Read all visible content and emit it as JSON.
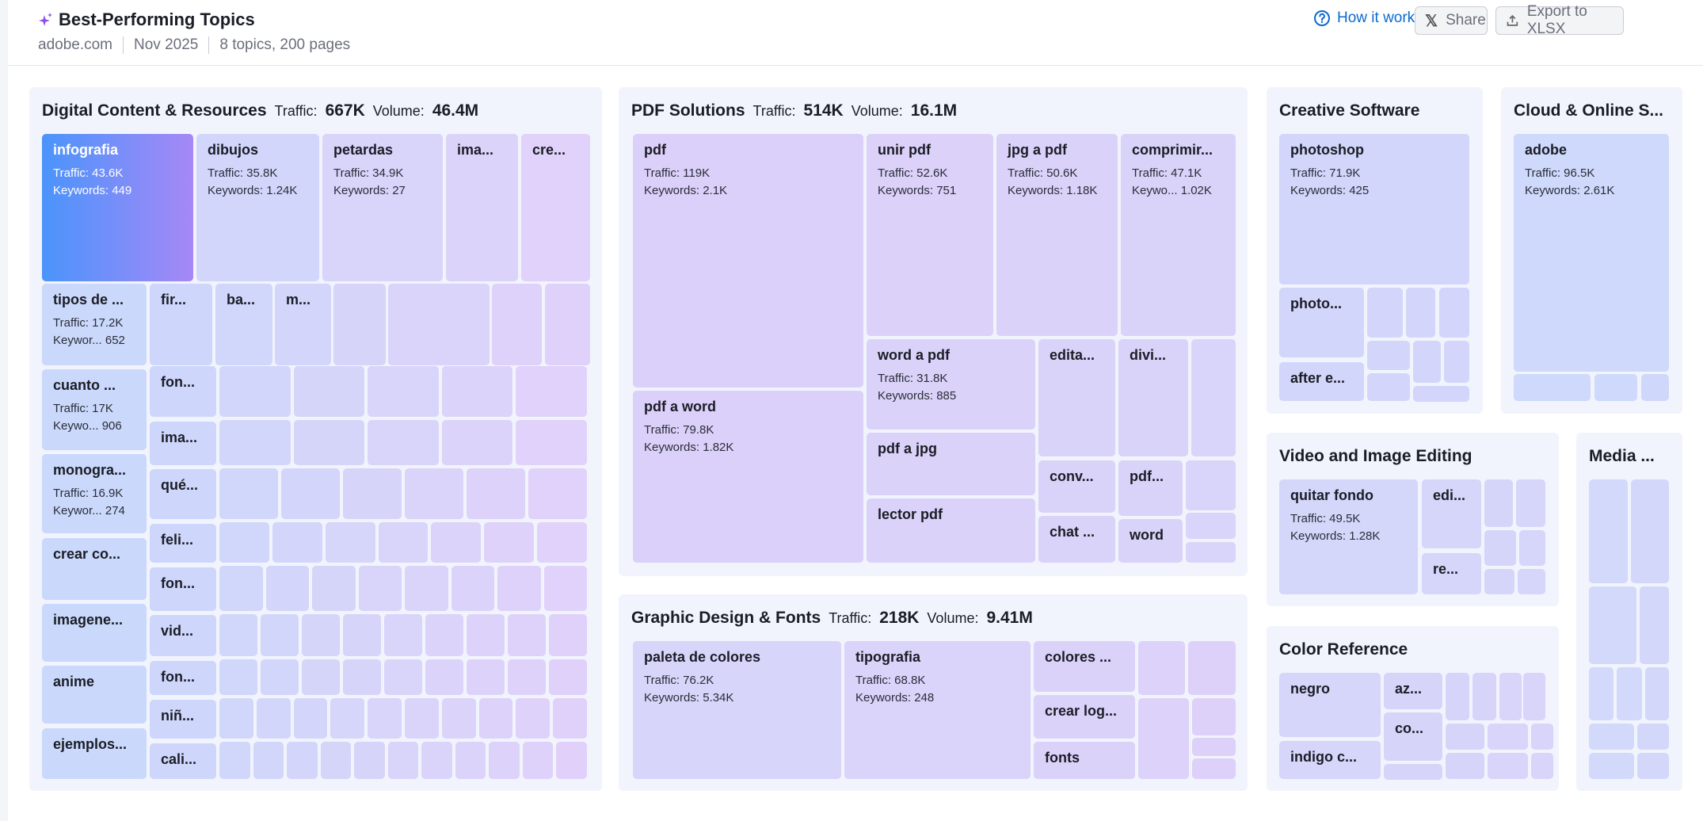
{
  "header": {
    "title": "Best-Performing Topics",
    "domain": "adobe.com",
    "period": "Nov 2025",
    "summary": "8 topics, 200 pages",
    "how_it_works": "How it works",
    "share": "Share",
    "export": "Export to XLSX"
  },
  "colors": {
    "accent": "#0a6bd1",
    "highlight_start": "#4a94fb",
    "highlight_end": "#a688f6",
    "panel_bg": "#f1f4fd"
  },
  "panels": [
    {
      "title": "Digital Content & Resources",
      "traffic_label": "Traffic:",
      "traffic": "667K",
      "volume_label": "Volume:",
      "volume": "46.4M",
      "tiles": [
        {
          "label": "infografia",
          "traffic": "Traffic: 43.6K",
          "keywords": "Keywords: 449",
          "selected": true
        },
        {
          "label": "dibujos",
          "traffic": "Traffic: 35.8K",
          "keywords": "Keywords: 1.24K"
        },
        {
          "label": "petardas",
          "traffic": "Traffic: 34.9K",
          "keywords": "Keywords: 27"
        },
        {
          "label": "ima..."
        },
        {
          "label": "cre..."
        },
        {
          "label": "tipos de ...",
          "traffic": "Traffic: 17.2K",
          "keywords": "Keywor... 652"
        },
        {
          "label": "cuanto ...",
          "traffic": "Traffic: 17K",
          "keywords": "Keywo...  906"
        },
        {
          "label": "monogra...",
          "traffic": "Traffic: 16.9K",
          "keywords": "Keywor... 274"
        },
        {
          "label": "crear co..."
        },
        {
          "label": "imagene..."
        },
        {
          "label": "anime"
        },
        {
          "label": "ejemplos..."
        },
        {
          "label": "fir..."
        },
        {
          "label": "fon..."
        },
        {
          "label": "ima..."
        },
        {
          "label": "qué..."
        },
        {
          "label": "feli..."
        },
        {
          "label": "fon..."
        },
        {
          "label": "vid..."
        },
        {
          "label": "fon..."
        },
        {
          "label": "niñ..."
        },
        {
          "label": "cali..."
        },
        {
          "label": "ba..."
        },
        {
          "label": "m..."
        }
      ]
    },
    {
      "title": "PDF Solutions",
      "traffic_label": "Traffic:",
      "traffic": "514K",
      "volume_label": "Volume:",
      "volume": "16.1M",
      "tiles": [
        {
          "label": "pdf",
          "traffic": "Traffic: 119K",
          "keywords": "Keywords: 2.1K"
        },
        {
          "label": "pdf a word",
          "traffic": "Traffic: 79.8K",
          "keywords": "Keywords: 1.82K"
        },
        {
          "label": "unir pdf",
          "traffic": "Traffic: 52.6K",
          "keywords": "Keywords: 751"
        },
        {
          "label": "jpg a pdf",
          "traffic": "Traffic: 50.6K",
          "keywords": "Keywords: 1.18K"
        },
        {
          "label": "comprimir...",
          "traffic": "Traffic: 47.1K",
          "keywords": "Keywo... 1.02K"
        },
        {
          "label": "word a pdf",
          "traffic": "Traffic: 31.8K",
          "keywords": "Keywords: 885"
        },
        {
          "label": "pdf a jpg"
        },
        {
          "label": "lector pdf"
        },
        {
          "label": "edita..."
        },
        {
          "label": "divi..."
        },
        {
          "label": "conv..."
        },
        {
          "label": "chat ..."
        },
        {
          "label": "pdf..."
        },
        {
          "label": "word"
        }
      ]
    },
    {
      "title": "Graphic Design & Fonts",
      "traffic_label": "Traffic:",
      "traffic": "218K",
      "volume_label": "Volume:",
      "volume": "9.41M",
      "tiles": [
        {
          "label": "paleta de colores",
          "traffic": "Traffic: 76.2K",
          "keywords": "Keywords: 5.34K"
        },
        {
          "label": "tipografia",
          "traffic": "Traffic: 68.8K",
          "keywords": "Keywords: 248"
        },
        {
          "label": "colores ..."
        },
        {
          "label": "crear log..."
        },
        {
          "label": "fonts"
        }
      ]
    },
    {
      "title": "Creative Software",
      "tiles": [
        {
          "label": "photoshop",
          "traffic": "Traffic: 71.9K",
          "keywords": "Keywords: 425"
        },
        {
          "label": "photo..."
        },
        {
          "label": "after e..."
        }
      ]
    },
    {
      "title": "Cloud & Online S...",
      "tiles": [
        {
          "label": "adobe",
          "traffic": "Traffic: 96.5K",
          "keywords": "Keywords: 2.61K"
        }
      ]
    },
    {
      "title": "Video and Image Editing",
      "tiles": [
        {
          "label": "quitar fondo",
          "traffic": "Traffic: 49.5K",
          "keywords": "Keywords: 1.28K"
        },
        {
          "label": "edi..."
        },
        {
          "label": "re..."
        }
      ]
    },
    {
      "title": "Color Reference",
      "tiles": [
        {
          "label": "negro"
        },
        {
          "label": "indigo c..."
        },
        {
          "label": "az..."
        },
        {
          "label": "co..."
        }
      ]
    },
    {
      "title": "Media ...",
      "tiles": []
    }
  ]
}
